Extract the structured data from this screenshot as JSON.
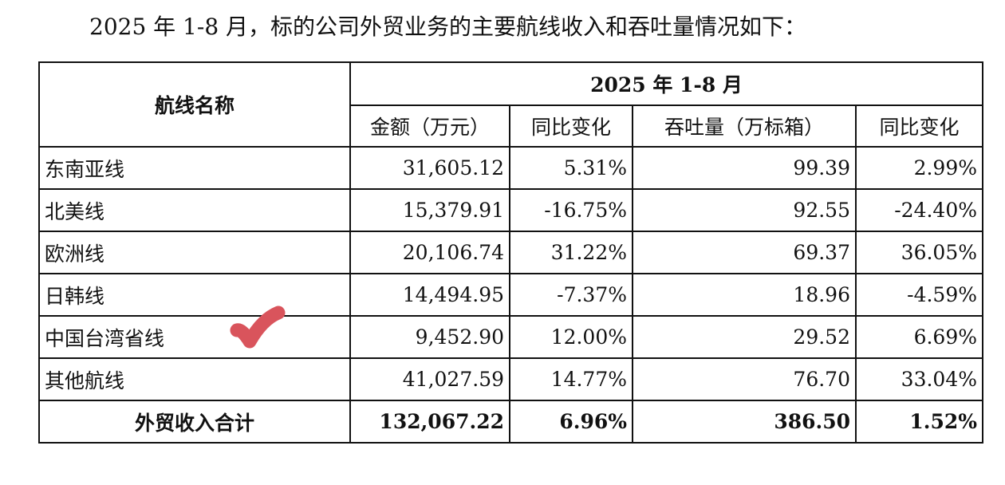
{
  "intro": "2025 年 1-8 月，标的公司外贸业务的主要航线收入和吞吐量情况如下：",
  "table": {
    "route_header": "航线名称",
    "period_header": "2025 年 1-8 月",
    "col_headers": [
      "金额（万元）",
      "同比变化",
      "吞吐量（万标箱）",
      "同比变化"
    ],
    "rows": [
      {
        "name": "东南亚线",
        "amount": "31,605.12",
        "amount_yoy": "5.31%",
        "volume": "99.39",
        "volume_yoy": "2.99%"
      },
      {
        "name": "北美线",
        "amount": "15,379.91",
        "amount_yoy": "-16.75%",
        "volume": "92.55",
        "volume_yoy": "-24.40%"
      },
      {
        "name": "欧洲线",
        "amount": "20,106.74",
        "amount_yoy": "31.22%",
        "volume": "69.37",
        "volume_yoy": "36.05%"
      },
      {
        "name": "日韩线",
        "amount": "14,494.95",
        "amount_yoy": "-7.37%",
        "volume": "18.96",
        "volume_yoy": "-4.59%"
      },
      {
        "name": "中国台湾省线",
        "amount": "9,452.90",
        "amount_yoy": "12.00%",
        "volume": "29.52",
        "volume_yoy": "6.69%"
      },
      {
        "name": "其他航线",
        "amount": "41,027.59",
        "amount_yoy": "14.77%",
        "volume": "76.70",
        "volume_yoy": "33.04%"
      }
    ],
    "total": {
      "name": "外贸收入合计",
      "amount": "132,067.22",
      "amount_yoy": "6.96%",
      "volume": "386.50",
      "volume_yoy": "1.52%"
    }
  },
  "colors": {
    "check_mark": "#d9545c"
  },
  "icons": {
    "annotation": "checkmark-icon"
  }
}
